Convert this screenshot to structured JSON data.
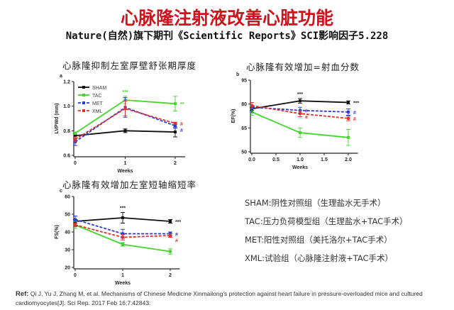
{
  "header": {
    "title": "心脉隆注射液改善心脏功能",
    "subtitle": "Nature(自然)旗下期刊《Scientific Reports》SCI影响因子5.228"
  },
  "colors": {
    "SHAM": "#111111",
    "TAC": "#44d62c",
    "MET": "#2a3adf",
    "XML": "#e0312b",
    "title": "#d0121b"
  },
  "chart_data": [
    {
      "type": "line",
      "panel": "a",
      "title": "心脉隆抑制左室厚壁舒张期厚度",
      "xlabel": "Weeks",
      "ylabel": "LVPWd (mm)",
      "x": [
        0,
        1,
        2
      ],
      "xticks": [
        "0",
        "1",
        "2"
      ],
      "yticks": [
        "0.6",
        "0.8",
        "1.0",
        "1.2"
      ],
      "ylim": [
        0.6,
        1.2
      ],
      "xlim": [
        0,
        2.2
      ],
      "legend": [
        "SHAM",
        "TAC",
        "MET",
        "XML"
      ],
      "legend_position": "top-left",
      "series": [
        {
          "name": "SHAM",
          "values": [
            0.76,
            0.8,
            0.79
          ],
          "err": [
            0.01,
            0.015,
            0.04
          ]
        },
        {
          "name": "TAC",
          "values": [
            0.78,
            1.05,
            1.02
          ],
          "err": [
            0.01,
            0.03,
            0.06
          ]
        },
        {
          "name": "MET",
          "values": [
            0.71,
            0.99,
            0.84
          ],
          "err": [
            0.03,
            0.08,
            0.02
          ]
        },
        {
          "name": "XML",
          "values": [
            0.73,
            0.98,
            0.86
          ],
          "err": [
            0.02,
            0.06,
            0.01
          ]
        }
      ],
      "annotations": [
        {
          "x": 1,
          "text": "***",
          "series": "TAC"
        },
        {
          "x": 2,
          "text": "**",
          "series": "TAC"
        },
        {
          "x": 2,
          "text": "#",
          "series": "XML"
        },
        {
          "x": 2,
          "text": "#",
          "series": "MET"
        }
      ]
    },
    {
      "type": "line",
      "panel": "b",
      "title": "心脉隆有效增加=射血分数",
      "xlabel": "Weeks",
      "ylabel": "EF(%)",
      "x": [
        0,
        1,
        2
      ],
      "xticks": [
        "0.0",
        "0.5",
        "1.0",
        "1.5",
        "2.0"
      ],
      "xtick_values": [
        0,
        0.5,
        1,
        1.5,
        2
      ],
      "yticks": [
        "50",
        "65",
        "80",
        "95"
      ],
      "ylim": [
        50,
        95
      ],
      "xlim": [
        0,
        2.2
      ],
      "series": [
        {
          "name": "SHAM",
          "values": [
            77,
            82,
            81
          ],
          "err": [
            1,
            1.5,
            1
          ]
        },
        {
          "name": "TAC",
          "values": [
            75,
            62,
            59
          ],
          "err": [
            2,
            3,
            5
          ]
        },
        {
          "name": "MET",
          "values": [
            78,
            76,
            75
          ],
          "err": [
            3,
            2,
            2
          ]
        },
        {
          "name": "XML",
          "values": [
            79,
            74,
            71
          ],
          "err": [
            2,
            2,
            1.5
          ]
        }
      ],
      "annotations": [
        {
          "x": 1,
          "text": "***",
          "series": "SHAM"
        },
        {
          "x": 2,
          "text": "***",
          "series": "SHAM"
        },
        {
          "x": 1,
          "text": "#",
          "series": "MET"
        },
        {
          "x": 1,
          "text": "#",
          "series": "XML"
        },
        {
          "x": 2,
          "text": "#",
          "series": "MET"
        },
        {
          "x": 2,
          "text": "#",
          "series": "XML"
        }
      ]
    },
    {
      "type": "line",
      "panel": "c",
      "title": "心脉隆有效增加左室短轴缩短率",
      "xlabel": "Weeks",
      "ylabel": "FS(%)",
      "x": [
        0,
        1,
        2
      ],
      "xticks": [
        "0",
        "1",
        "2"
      ],
      "yticks": [
        "20",
        "30",
        "40",
        "50",
        "60"
      ],
      "ylim": [
        20,
        60
      ],
      "xlim": [
        0,
        2.2
      ],
      "series": [
        {
          "name": "SHAM",
          "values": [
            46,
            48,
            46
          ],
          "err": [
            1,
            3,
            1
          ]
        },
        {
          "name": "TAC",
          "values": [
            44,
            33,
            29
          ],
          "err": [
            2,
            1,
            1.5
          ]
        },
        {
          "name": "MET",
          "values": [
            47,
            39,
            39
          ],
          "err": [
            2,
            2.5,
            1
          ]
        },
        {
          "name": "XML",
          "values": [
            44,
            37,
            38
          ],
          "err": [
            1,
            1.5,
            1
          ]
        }
      ],
      "annotations": [
        {
          "x": 1,
          "text": "***",
          "series": "SHAM"
        },
        {
          "x": 2,
          "text": "***",
          "series": "SHAM"
        },
        {
          "x": 2,
          "text": "#",
          "series": "MET"
        },
        {
          "x": 2,
          "text": "#",
          "series": "XML"
        }
      ]
    }
  ],
  "legend_text": [
    "SHAM:阴性对照组（生理盐水无手术）",
    "TAC:压力负荷模型组（生理盐水+TAC手术）",
    "MET:阳性对照组（美托洛尔+TAC手术）",
    "XML:试验组（心脉隆注射液+TAC手术）"
  ],
  "reference": {
    "label": "Ref:",
    "text": "Qi J, Yu J, Zhang M, et al. Mechanisms of Chinese Medicine Xinmailong's protection against heart failure in pressure-overloaded mice and cultured cardiomyocytes[J]. Sci Rep. 2017 Feb 16;7:42843."
  }
}
